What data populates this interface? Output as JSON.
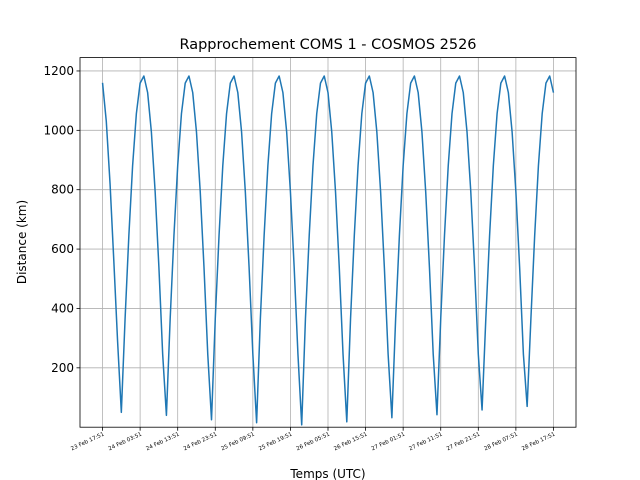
{
  "chart_data": {
    "type": "line",
    "title": "Rapprochement COMS 1 - COSMOS 2526",
    "x_label": "Temps (UTC)",
    "y_label": "Distance (km)",
    "x": [
      0,
      1,
      2,
      3,
      4,
      5,
      6,
      7,
      8,
      9,
      10,
      11,
      12,
      13,
      14,
      15,
      16,
      17,
      18,
      19,
      20,
      21,
      22,
      23,
      24,
      25,
      26,
      27,
      28,
      29,
      30,
      31,
      32,
      33,
      34,
      35,
      36,
      37,
      38,
      39,
      40,
      41,
      42,
      43,
      44,
      45,
      46,
      47,
      48,
      49,
      50,
      51,
      52,
      53,
      54,
      55,
      56,
      57,
      58,
      59,
      60,
      61,
      62,
      63,
      64,
      65,
      66,
      67,
      68,
      69,
      70,
      71,
      72,
      73,
      74,
      75,
      76,
      77,
      78,
      79,
      80,
      81,
      82,
      83,
      84,
      85,
      86,
      87,
      88,
      89,
      90,
      91,
      92,
      93,
      94,
      95,
      96,
      97,
      98,
      99,
      100,
      101,
      102,
      103,
      104,
      105,
      106,
      107,
      108,
      109,
      110,
      111,
      112,
      113,
      114,
      115,
      116,
      117,
      118,
      119,
      120
    ],
    "series": [
      {
        "name": "Distance",
        "color": "#1f77b4",
        "values": [
          1160,
          1030,
          820,
          560,
          290,
          50,
          366,
          645,
          881,
          1056,
          1159,
          1183,
          1127,
          994,
          793,
          538,
          246,
          40,
          366,
          645,
          881,
          1056,
          1159,
          1183,
          1127,
          994,
          793,
          538,
          246,
          25,
          366,
          645,
          881,
          1056,
          1159,
          1183,
          1127,
          994,
          793,
          538,
          246,
          15,
          366,
          645,
          881,
          1056,
          1159,
          1183,
          1127,
          994,
          793,
          538,
          246,
          8,
          366,
          645,
          881,
          1056,
          1159,
          1183,
          1127,
          994,
          793,
          538,
          246,
          18,
          366,
          645,
          881,
          1056,
          1159,
          1183,
          1127,
          994,
          793,
          538,
          246,
          32,
          366,
          645,
          881,
          1056,
          1159,
          1183,
          1127,
          994,
          793,
          538,
          246,
          42,
          366,
          645,
          881,
          1056,
          1159,
          1183,
          1127,
          994,
          793,
          538,
          246,
          58,
          366,
          645,
          881,
          1056,
          1159,
          1183,
          1127,
          994,
          793,
          538,
          246,
          70,
          366,
          645,
          881,
          1056,
          1159,
          1183,
          1127
        ]
      }
    ],
    "xlim": [
      -6,
      126
    ],
    "ylim": [
      0,
      1245
    ],
    "xticks": [
      {
        "value": 0,
        "label": "23 Feb 17:51"
      },
      {
        "value": 10,
        "label": "24 Feb 03:51"
      },
      {
        "value": 20,
        "label": "24 Feb 13:51"
      },
      {
        "value": 30,
        "label": "24 Feb 23:51"
      },
      {
        "value": 40,
        "label": "25 Feb 09:51"
      },
      {
        "value": 50,
        "label": "25 Feb 19:51"
      },
      {
        "value": 60,
        "label": "26 Feb 05:51"
      },
      {
        "value": 70,
        "label": "26 Feb 15:51"
      },
      {
        "value": 80,
        "label": "27 Feb 01:51"
      },
      {
        "value": 90,
        "label": "27 Feb 11:51"
      },
      {
        "value": 100,
        "label": "27 Feb 21:51"
      },
      {
        "value": 110,
        "label": "28 Feb 07:51"
      },
      {
        "value": 120,
        "label": "28 Feb 17:51"
      }
    ],
    "yticks": [
      200,
      400,
      600,
      800,
      1000,
      1200
    ],
    "grid": true
  }
}
